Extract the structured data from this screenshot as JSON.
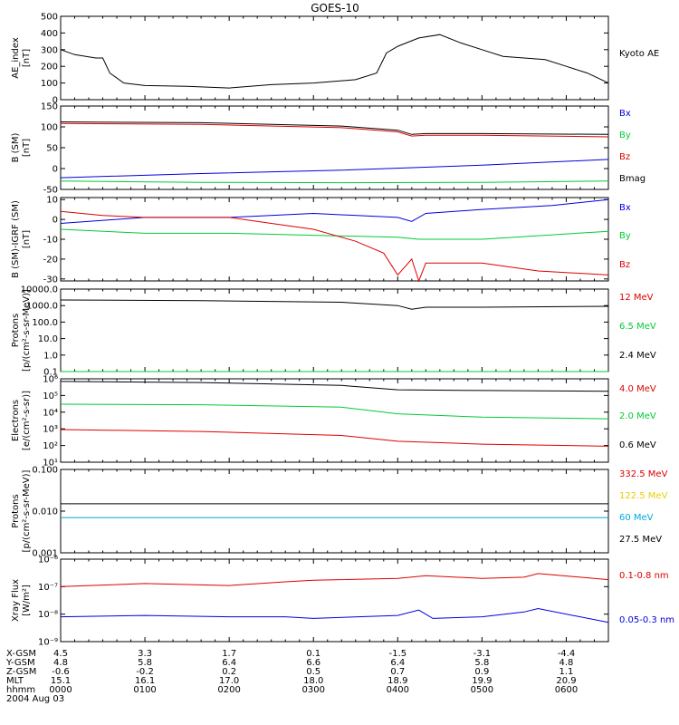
{
  "title": "GOES-10",
  "colors": {
    "black": "#000000",
    "red": "#dd0000",
    "green": "#00cc33",
    "blue": "#0000dd",
    "cyan": "#00a8e0",
    "yellow": "#e6d000"
  },
  "chart_data": [
    {
      "type": "line",
      "id": "ae",
      "ylabel": [
        "AE_index",
        "[nT]"
      ],
      "yticks": [
        "500",
        "400",
        "300",
        "200",
        "100",
        "0"
      ],
      "ylim": [
        0,
        500
      ],
      "series": [
        {
          "name": "Kyoto AE",
          "color": "#000000",
          "x": [
            0,
            10,
            25,
            30,
            35,
            45,
            60,
            90,
            120,
            150,
            180,
            210,
            225,
            232,
            240,
            255,
            270,
            285,
            300,
            315,
            330,
            345,
            360,
            375,
            390
          ],
          "y": [
            300,
            270,
            250,
            250,
            160,
            100,
            85,
            80,
            70,
            90,
            100,
            120,
            160,
            280,
            320,
            370,
            390,
            340,
            300,
            260,
            250,
            240,
            200,
            160,
            100
          ]
        }
      ]
    },
    {
      "type": "line",
      "id": "bsm",
      "ylabel": [
        "B (SM)",
        "[nT]"
      ],
      "yticks": [
        "150",
        "100",
        "50",
        "0",
        "-50"
      ],
      "ylim": [
        -50,
        150
      ],
      "series": [
        {
          "name": "Bx",
          "color": "#0000dd",
          "x": [
            0,
            100,
            200,
            300,
            390
          ],
          "y": [
            -22,
            -12,
            -4,
            8,
            22
          ]
        },
        {
          "name": "By",
          "color": "#00cc33",
          "x": [
            0,
            100,
            200,
            300,
            390
          ],
          "y": [
            -30,
            -33,
            -34,
            -33,
            -30
          ]
        },
        {
          "name": "Bz",
          "color": "#dd0000",
          "x": [
            0,
            100,
            200,
            240,
            250,
            260,
            300,
            390
          ],
          "y": [
            108,
            106,
            98,
            88,
            78,
            80,
            80,
            76
          ]
        },
        {
          "name": "Bmag",
          "color": "#000000",
          "x": [
            0,
            100,
            200,
            240,
            250,
            260,
            300,
            390
          ],
          "y": [
            112,
            110,
            102,
            92,
            82,
            84,
            84,
            82
          ]
        }
      ]
    },
    {
      "type": "line",
      "id": "bsmigrf",
      "ylabel": [
        "B (SM)-IGRF (SM)",
        "[nT]"
      ],
      "yticks": [
        "10",
        "0",
        "-10",
        "-20",
        "-30"
      ],
      "ylim": [
        -31,
        11
      ],
      "series": [
        {
          "name": "Bx",
          "color": "#0000dd",
          "x": [
            0,
            60,
            120,
            180,
            240,
            250,
            260,
            300,
            350,
            390
          ],
          "y": [
            -2,
            1,
            1,
            3,
            1,
            -1,
            3,
            5,
            7,
            10
          ]
        },
        {
          "name": "By",
          "color": "#00cc33",
          "x": [
            0,
            60,
            120,
            180,
            240,
            255,
            300,
            390
          ],
          "y": [
            -5,
            -7,
            -7,
            -8,
            -9,
            -10,
            -10,
            -6
          ]
        },
        {
          "name": "Bz",
          "color": "#dd0000",
          "x": [
            0,
            30,
            60,
            120,
            150,
            180,
            210,
            230,
            240,
            250,
            255,
            260,
            300,
            340,
            390
          ],
          "y": [
            4,
            2,
            1,
            1,
            -2,
            -5,
            -11,
            -17,
            -28,
            -20,
            -31,
            -22,
            -22,
            -26,
            -28
          ]
        }
      ]
    },
    {
      "type": "line",
      "id": "protons-low",
      "scale": "log",
      "ylabel": [
        "Protons",
        "[p/(cm²-s-sr-MeV)]"
      ],
      "yticks": [
        "10000.0",
        "1000.0",
        "100.0",
        "10.0",
        "1.0",
        "0.1"
      ],
      "ylim": [
        0.1,
        10000
      ],
      "series": [
        {
          "name": "12 MeV",
          "color": "#dd0000",
          "x": [
            300,
            390
          ],
          "y": [
            0.1,
            0.1
          ]
        },
        {
          "name": "6.5 MeV",
          "color": "#00cc33",
          "x": [
            0,
            390
          ],
          "y": [
            0.1,
            0.1
          ],
          "note": "noisy near 0.1-1"
        },
        {
          "name": "2.4 MeV",
          "color": "#000000",
          "x": [
            0,
            100,
            200,
            240,
            250,
            260,
            300,
            390
          ],
          "y": [
            2200,
            2000,
            1600,
            1000,
            600,
            800,
            800,
            900
          ]
        }
      ]
    },
    {
      "type": "line",
      "id": "electrons",
      "scale": "log",
      "ylabel": [
        "Electrons",
        "[e/(cm²-s-sr)]"
      ],
      "yticks": [
        "10⁶",
        "10⁵",
        "10⁴",
        "10³",
        "10²",
        "10¹"
      ],
      "ylim": [
        10,
        1000000
      ],
      "series": [
        {
          "name": "4.0 MeV",
          "color": "#dd0000",
          "x": [
            0,
            100,
            200,
            240,
            300,
            390
          ],
          "y": [
            900,
            700,
            400,
            180,
            120,
            90
          ]
        },
        {
          "name": "2.0 MeV",
          "color": "#00cc33",
          "x": [
            0,
            100,
            200,
            240,
            300,
            390
          ],
          "y": [
            30000,
            28000,
            20000,
            8000,
            5000,
            4000
          ]
        },
        {
          "name": "0.6 MeV",
          "color": "#000000",
          "x": [
            0,
            100,
            200,
            240,
            300,
            390
          ],
          "y": [
            700000,
            600000,
            400000,
            220000,
            200000,
            180000
          ]
        }
      ]
    },
    {
      "type": "line",
      "id": "protons-high",
      "scale": "log",
      "ylabel": [
        "Protons",
        "[p/(cm²-s-sr-MeV)]"
      ],
      "yticks": [
        "0.100",
        "0.010",
        "0.001"
      ],
      "ylim": [
        0.001,
        0.1
      ],
      "series": [
        {
          "name": "332.5 MeV",
          "color": "#dd0000",
          "x": [],
          "y": []
        },
        {
          "name": "122.5 MeV",
          "color": "#e6d000",
          "x": [],
          "y": []
        },
        {
          "name": "60 MeV",
          "color": "#00a8e0",
          "x": [
            0,
            390
          ],
          "y": [
            0.007,
            0.007
          ],
          "note": "noisy 0.002-0.03"
        },
        {
          "name": "27.5 MeV",
          "color": "#000000",
          "x": [
            0,
            390
          ],
          "y": [
            0.015,
            0.015
          ],
          "note": "noisy 0.005-0.06"
        }
      ]
    },
    {
      "type": "line",
      "id": "xray",
      "scale": "log",
      "ylabel": [
        "Xray Flux",
        "[W/m²]"
      ],
      "yticks": [
        "10⁻⁶",
        "10⁻⁷",
        "10⁻⁸",
        "10⁻⁹"
      ],
      "ylim": [
        1e-09,
        1e-06
      ],
      "series": [
        {
          "name": "0.1-0.8 nm",
          "color": "#dd0000",
          "x": [
            0,
            60,
            120,
            160,
            180,
            240,
            260,
            300,
            330,
            340,
            390
          ],
          "y": [
            1e-07,
            1.3e-07,
            1.1e-07,
            1.5e-07,
            1.7e-07,
            2e-07,
            2.5e-07,
            2e-07,
            2.2e-07,
            3e-07,
            1.8e-07
          ]
        },
        {
          "name": "0.05-0.3 nm",
          "color": "#0000dd",
          "x": [
            0,
            60,
            120,
            160,
            180,
            240,
            255,
            265,
            300,
            330,
            340,
            390
          ],
          "y": [
            8e-09,
            9e-09,
            8e-09,
            8e-09,
            7e-09,
            9e-09,
            1.4e-08,
            7e-09,
            8e-09,
            1.2e-08,
            1.6e-08,
            5e-09
          ]
        }
      ]
    }
  ],
  "xaxis": {
    "rows": [
      {
        "label": "X-GSM",
        "values": [
          "4.5",
          "3.3",
          "1.7",
          "0.1",
          "-1.5",
          "-3.1",
          "-4.4"
        ]
      },
      {
        "label": "Y-GSM",
        "values": [
          "4.8",
          "5.8",
          "6.4",
          "6.6",
          "6.4",
          "5.8",
          "4.8"
        ]
      },
      {
        "label": "Z-GSM",
        "values": [
          "-0.6",
          "-0.2",
          "0.2",
          "0.5",
          "0.7",
          "0.9",
          "1.1"
        ]
      },
      {
        "label": "MLT",
        "values": [
          "15.1",
          "16.1",
          "17.0",
          "18.0",
          "18.9",
          "19.9",
          "20.9"
        ]
      },
      {
        "label": "hhmm",
        "values": [
          "0000",
          "0100",
          "0200",
          "0300",
          "0400",
          "0500",
          "0600"
        ]
      }
    ],
    "date": "2004 Aug 03"
  }
}
